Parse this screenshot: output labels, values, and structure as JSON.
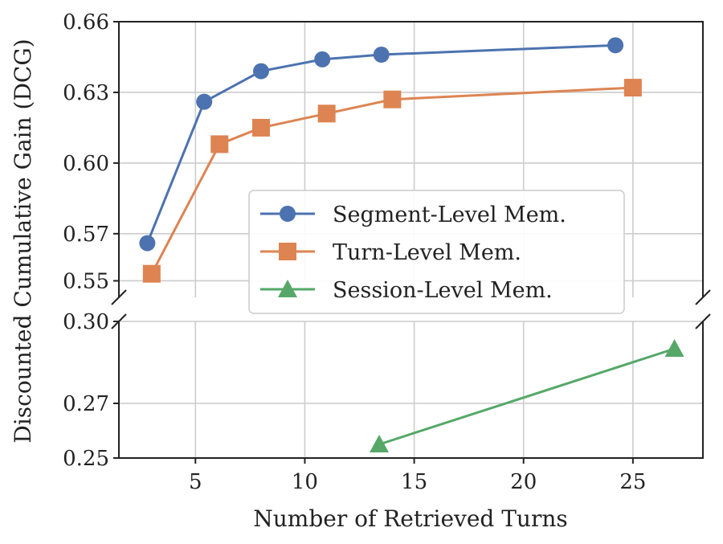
{
  "chart_data": {
    "type": "line",
    "xlabel": "Number of Retrieved Turns",
    "ylabel": "Discounted Cumulative Gain (DCG)",
    "xlim": [
      1.5,
      28.2
    ],
    "x_ticks": [
      5,
      10,
      15,
      20,
      25
    ],
    "y_break": true,
    "upper_panel": {
      "ylim": [
        0.543,
        0.66
      ],
      "y_ticks": [
        0.55,
        0.57,
        0.6,
        0.63,
        0.66
      ]
    },
    "lower_panel": {
      "ylim": [
        0.25,
        0.3
      ],
      "y_ticks": [
        0.25,
        0.27,
        0.3
      ]
    },
    "grid": true,
    "legend_position": "center-right",
    "series": [
      {
        "name": "Segment-Level Mem.",
        "color": "#4c72b0",
        "marker": "circle",
        "x": [
          2.8,
          5.4,
          8.0,
          10.8,
          13.5,
          24.2
        ],
        "y": [
          0.566,
          0.626,
          0.639,
          0.644,
          0.646,
          0.65
        ]
      },
      {
        "name": "Turn-Level Mem.",
        "color": "#dd8452",
        "marker": "square",
        "x": [
          3.0,
          6.1,
          8.0,
          11.0,
          14.0,
          25.0
        ],
        "y": [
          0.553,
          0.608,
          0.615,
          0.621,
          0.627,
          0.632
        ]
      },
      {
        "name": "Session-Level Mem.",
        "color": "#55a868",
        "marker": "triangle",
        "x": [
          13.4,
          26.9
        ],
        "y": [
          0.255,
          0.29
        ]
      }
    ]
  }
}
